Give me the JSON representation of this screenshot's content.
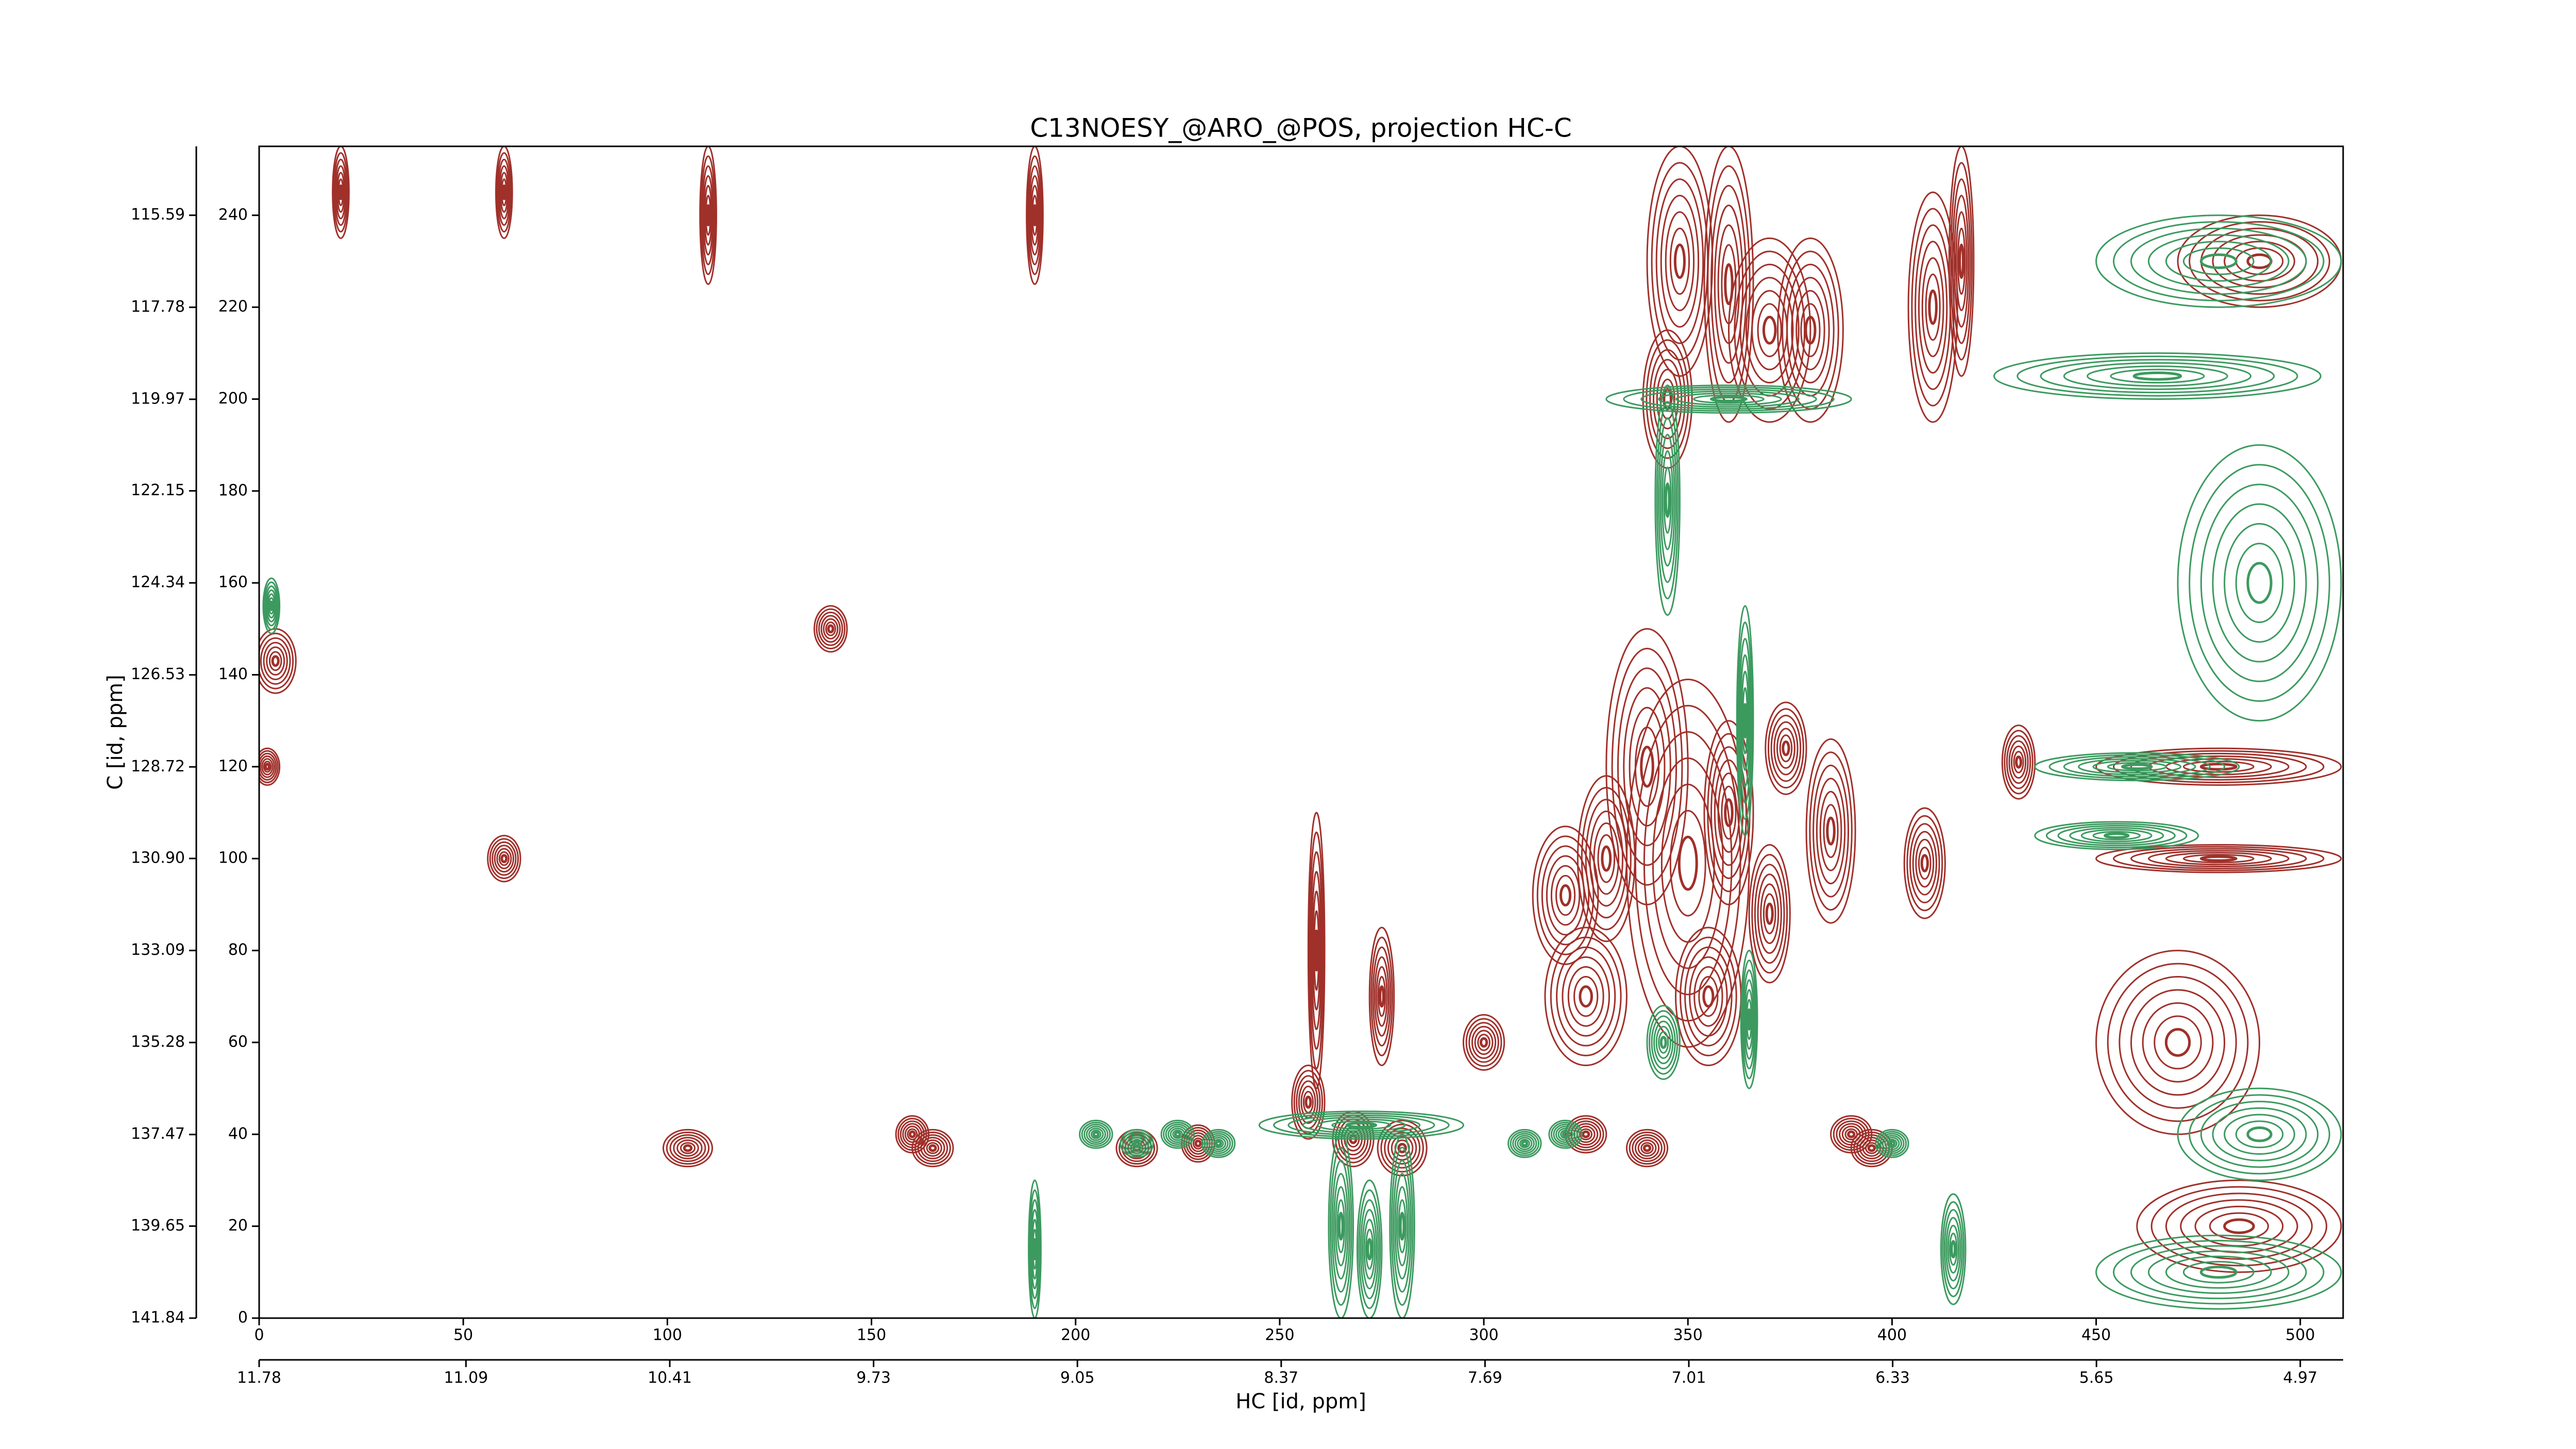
{
  "chart_data": {
    "type": "contour",
    "title": "C13NOESY_@ARO_@POS, projection HC-C",
    "xlabel": "HC [id, ppm]",
    "ylabel": "C [id, ppm]",
    "xlim": [
      0,
      510.5
    ],
    "xticks": [
      0,
      50,
      100,
      150,
      200,
      250,
      300,
      350,
      400,
      450,
      500
    ],
    "ylim": [
      0,
      255
    ],
    "yticks": [
      0,
      20,
      40,
      60,
      80,
      100,
      120,
      140,
      160,
      180,
      200,
      220,
      240
    ],
    "x2lim": [
      11.78,
      4.827
    ],
    "x2ticks": [
      11.78,
      11.09,
      10.41,
      9.73,
      9.05,
      8.37,
      7.69,
      7.01,
      6.33,
      5.65,
      4.97
    ],
    "y2lim": [
      141.84,
      113.95
    ],
    "y2ticks": [
      141.84,
      139.65,
      137.47,
      135.28,
      133.09,
      {
        "value": 130.9,
        "label": "130.90"
      },
      128.72,
      126.53,
      124.34,
      122.15,
      119.97,
      117.78,
      115.59
    ],
    "peaks": {
      "positive": {
        "color": "#a0302a",
        "x": [
          257,
          268,
          280,
          259,
          275,
          345,
          348,
          360,
          370,
          380,
          410,
          417,
          320,
          350,
          340,
          330,
          325,
          355,
          374,
          360,
          385,
          370,
          408,
          431,
          4,
          105,
          160,
          165,
          215,
          230,
          325,
          340,
          390,
          395,
          490,
          480,
          480,
          485,
          470,
          20,
          60,
          110,
          190,
          2,
          300,
          140,
          60
        ],
        "y": [
          47,
          39,
          37,
          80,
          70,
          200,
          230,
          225,
          215,
          215,
          220,
          230,
          92,
          99,
          120,
          100,
          70,
          70,
          124,
          110,
          106,
          88,
          99,
          121,
          143,
          37,
          40,
          37,
          37,
          38,
          40,
          37,
          40,
          37,
          230,
          120,
          100,
          20,
          60,
          245,
          245,
          240,
          240,
          120,
          60,
          150,
          100
        ],
        "width": [
          4,
          5,
          6,
          2,
          3,
          6,
          8,
          6,
          10,
          8,
          6,
          3,
          8,
          15,
          10,
          7,
          10,
          8,
          5,
          6,
          6,
          5,
          5,
          4,
          5,
          6,
          4,
          5,
          5,
          4,
          5,
          5,
          5,
          5,
          20,
          30,
          30,
          25,
          20,
          2,
          2,
          2,
          2,
          3,
          5,
          4,
          4
        ],
        "height": [
          8,
          6,
          6,
          30,
          15,
          15,
          25,
          30,
          20,
          20,
          25,
          25,
          15,
          40,
          30,
          18,
          15,
          15,
          10,
          20,
          20,
          15,
          12,
          8,
          7,
          4,
          4,
          4,
          4,
          4,
          4,
          4,
          4,
          4,
          10,
          4,
          3,
          10,
          20,
          10,
          10,
          15,
          15,
          4,
          6,
          5,
          5
        ]
      },
      "negative": {
        "color": "#3c9a5f",
        "x": [
          265,
          272,
          280,
          270,
          345,
          360,
          364,
          365,
          344,
          190,
          415,
          465,
          480,
          490,
          490,
          480,
          460,
          455,
          205,
          215,
          225,
          235,
          310,
          320,
          400,
          3
        ],
        "y": [
          20,
          15,
          20,
          42,
          178,
          200,
          130,
          65,
          60,
          15,
          15,
          205,
          230,
          160,
          40,
          10,
          120,
          105,
          40,
          38,
          40,
          38,
          38,
          40,
          38,
          155
        ],
        "width": [
          3,
          3,
          3,
          25,
          3,
          30,
          2,
          2,
          4,
          1.5,
          3,
          40,
          30,
          20,
          20,
          30,
          25,
          20,
          4,
          4,
          4,
          4,
          4,
          4,
          4,
          2
        ],
        "height": [
          20,
          15,
          20,
          3,
          25,
          3,
          25,
          15,
          8,
          15,
          12,
          5,
          10,
          30,
          10,
          8,
          3,
          3,
          3,
          3,
          3,
          3,
          3,
          3,
          3,
          6
        ]
      }
    }
  }
}
